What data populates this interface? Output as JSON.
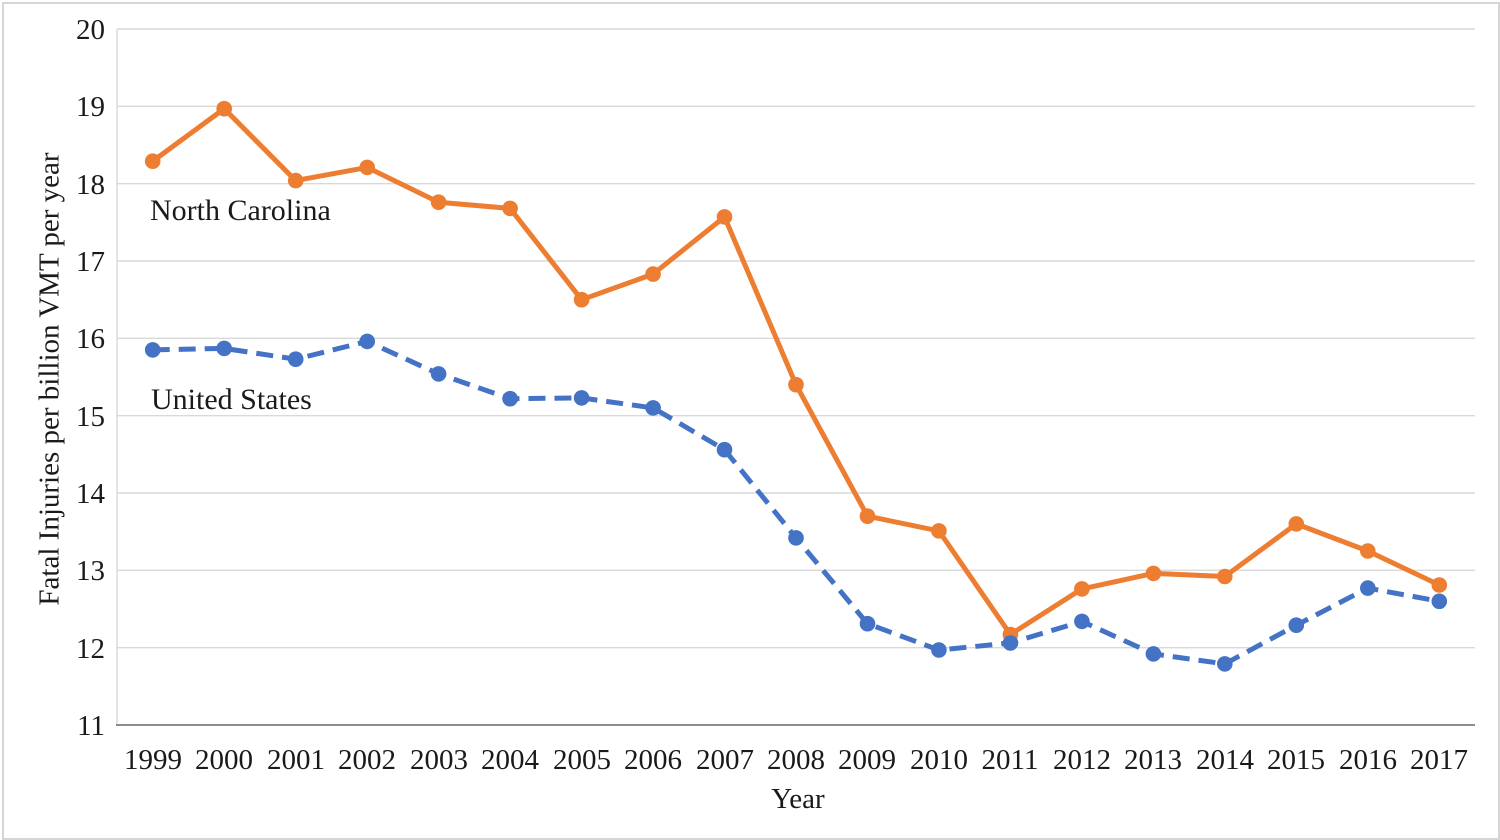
{
  "chart_data": {
    "type": "line",
    "x": [
      "1999",
      "2000",
      "2001",
      "2002",
      "2003",
      "2004",
      "2005",
      "2006",
      "2007",
      "2008",
      "2009",
      "2010",
      "2011",
      "2012",
      "2013",
      "2014",
      "2015",
      "2016",
      "2017"
    ],
    "xlabel": "Year",
    "ylabel": "Fatal Injuries per billion VMT per year",
    "ylim": [
      11,
      20
    ],
    "y_ticks": [
      20,
      19,
      18,
      17,
      16,
      15,
      14,
      13,
      12,
      11
    ],
    "grid": "horizontal-only",
    "legend_position": "in-plot-text-labels",
    "series": [
      {
        "name": "North Carolina",
        "line_style": "solid",
        "marker": "circle",
        "color": "#ED7D31",
        "values": [
          18.29,
          18.97,
          18.04,
          18.21,
          17.76,
          17.68,
          16.5,
          16.83,
          17.57,
          15.4,
          13.7,
          13.51,
          12.17,
          12.76,
          12.96,
          12.92,
          13.6,
          13.25,
          12.81
        ]
      },
      {
        "name": "United States",
        "line_style": "dashed",
        "marker": "circle",
        "color": "#4472C4",
        "values": [
          15.85,
          15.87,
          15.73,
          15.96,
          15.54,
          15.22,
          15.23,
          15.1,
          14.56,
          13.42,
          12.31,
          11.97,
          12.06,
          12.34,
          11.92,
          11.79,
          12.29,
          12.77,
          12.6
        ]
      }
    ],
    "annotations": [
      {
        "text": "North Carolina",
        "near_x": "2001",
        "near_y": 17.7
      },
      {
        "text": "United States",
        "near_x": "2001",
        "near_y": 15.3
      }
    ]
  },
  "style": {
    "gridline_color": "#D9D9D9",
    "y_axis_line_color": "#D9D9D9",
    "x_axis_line_color": "#8C8C8C",
    "text_color": "#1a1a1a",
    "background_color": "#FFFFFF",
    "figure_border_color": "#D6D6D6"
  }
}
